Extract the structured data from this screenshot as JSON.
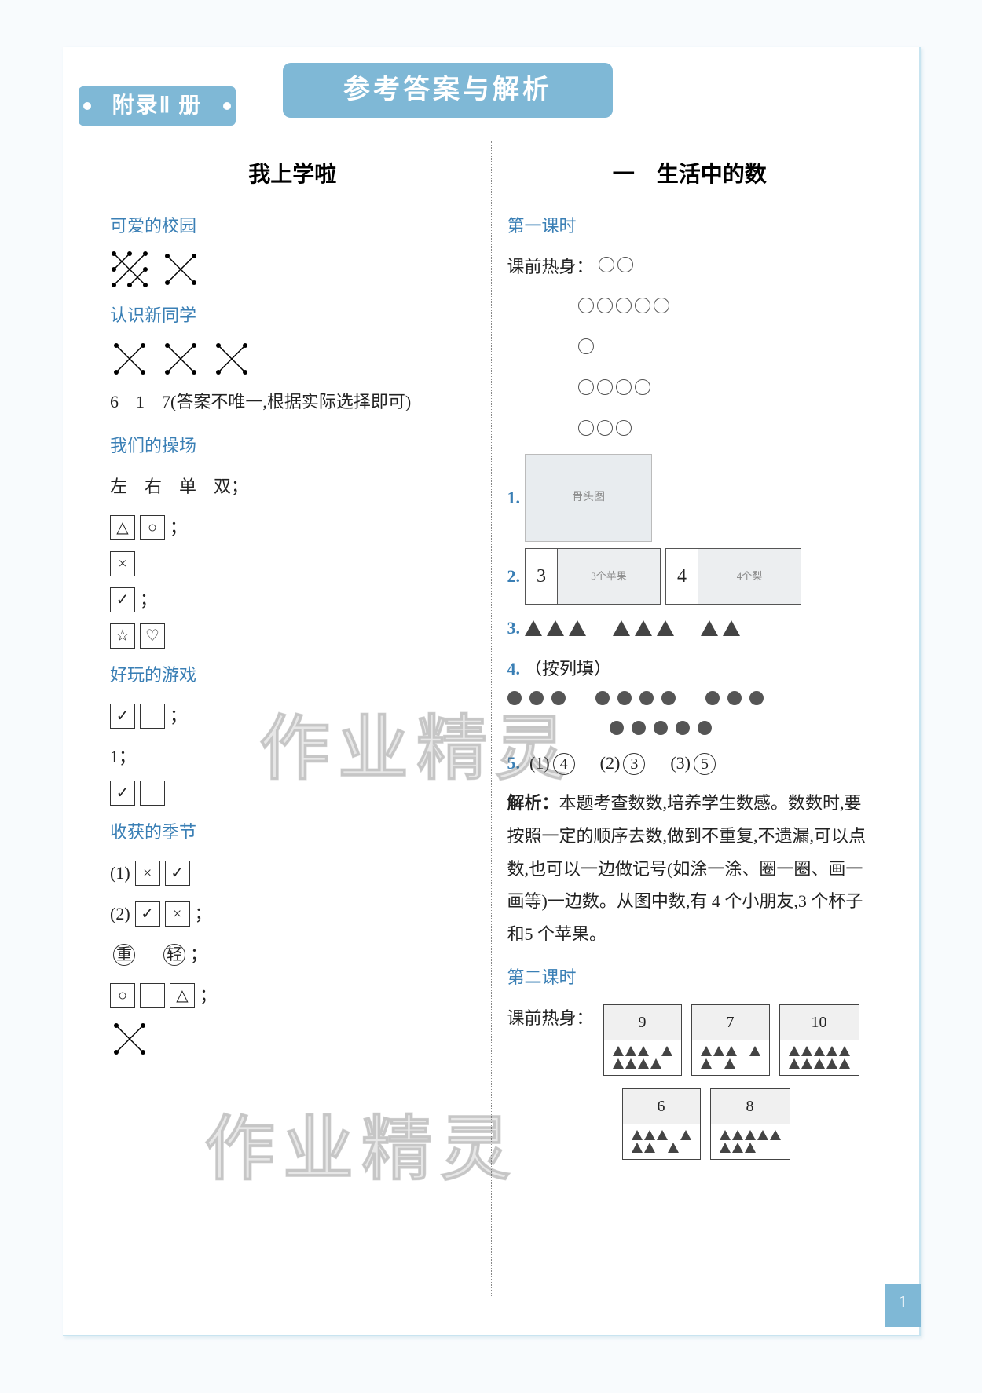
{
  "banner": {
    "left_tab": "附录Ⅱ 册",
    "main_tab": "参考答案与解析"
  },
  "watermark": "作业精灵",
  "page_number": "1",
  "left": {
    "title": "我上学啦",
    "sections": [
      {
        "heading": "可爱的校园"
      },
      {
        "heading": "认识新同学"
      }
    ],
    "answer_note": "6　1　7(答案不唯一,根据实际选择即可)",
    "playground": {
      "heading": "我们的操场",
      "line1": "左　右　单　双；",
      "shapes": {
        "triangle": "△",
        "circle": "○",
        "x": "×",
        "check": "✓",
        "star": "☆",
        "heart": "♡",
        "square": "□"
      }
    },
    "games": {
      "heading": "好玩的游戏",
      "mid": "1；"
    },
    "harvest": {
      "heading": "收获的季节",
      "q1": "(1)",
      "q2": "(2)",
      "heavy": "重",
      "light": "轻"
    }
  },
  "right": {
    "title": "一　生活中的数",
    "lesson1": {
      "heading": "第一课时",
      "warmup": "课前热身：",
      "circles": [
        2,
        5,
        1,
        4,
        3
      ],
      "q1_label": "1.",
      "q2_label": "2.",
      "q2_boxes": [
        {
          "num": "3",
          "desc": "3个苹果"
        },
        {
          "num": "4",
          "desc": "4个梨"
        }
      ],
      "q3_label": "3.",
      "q3_triangles": [
        3,
        3,
        2
      ],
      "q4_label": "4.",
      "q4_hint": "（按列填）",
      "q4_dots": [
        3,
        4,
        3
      ],
      "q4_row2": 5,
      "q5_label": "5.",
      "q5_answers": [
        {
          "idx": "(1)",
          "val": "4"
        },
        {
          "idx": "(2)",
          "val": "3"
        },
        {
          "idx": "(3)",
          "val": "5"
        }
      ],
      "explain_label": "解析：",
      "explain": "本题考查数数,培养学生数感。数数时,要按照一定的顺序去数,做到不重复,不遗漏,可以点数,也可以一边做记号(如涂一涂、圈一圈、画一画等)一边数。从图中数,有 4 个小朋友,3 个杯子和5 个苹果。"
    },
    "lesson2": {
      "heading": "第二课时",
      "warmup": "课前热身：",
      "boxes_top": [
        {
          "n": "9",
          "rows": [
            [
              1,
              1,
              1,
              0,
              1
            ],
            [
              1,
              1,
              1,
              1,
              0
            ]
          ]
        },
        {
          "n": "7",
          "rows": [
            [
              1,
              1,
              1,
              0,
              1
            ],
            [
              1,
              0,
              1,
              0
            ]
          ]
        },
        {
          "n": "10",
          "rows": [
            [
              1,
              1,
              1,
              1,
              1
            ],
            [
              1,
              1,
              1,
              1,
              1
            ]
          ]
        }
      ],
      "boxes_bot": [
        {
          "n": "6",
          "rows": [
            [
              1,
              1,
              1,
              0,
              1
            ],
            [
              1,
              1,
              0,
              1,
              0
            ]
          ]
        },
        {
          "n": "8",
          "rows": [
            [
              1,
              1,
              1,
              1,
              1
            ],
            [
              1,
              1,
              1
            ]
          ]
        }
      ]
    }
  }
}
